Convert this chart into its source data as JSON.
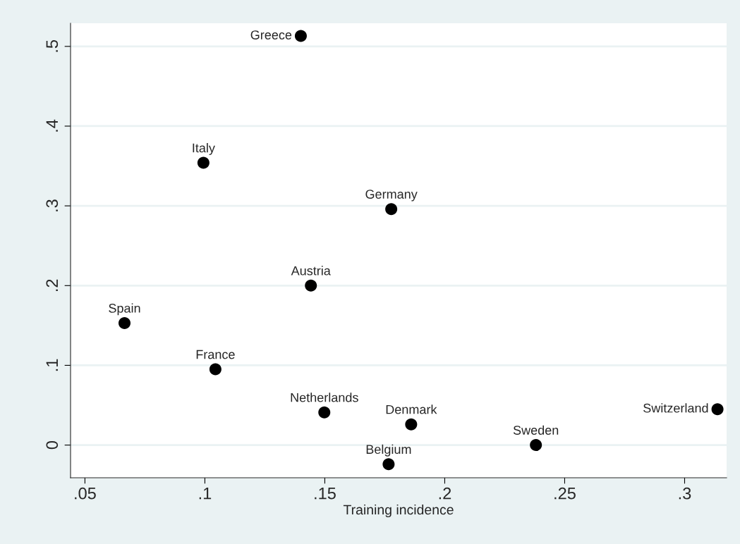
{
  "chart_data": {
    "type": "scatter",
    "xlabel": "Training incidence",
    "series": [
      {
        "color": "#000000",
        "x": [
          0.14,
          0.0994,
          0.1777,
          0.1442,
          0.0665,
          0.1044,
          0.1498,
          0.186,
          0.1766,
          0.238,
          0.3137
        ],
        "values": [
          0.513,
          0.354,
          0.296,
          0.2,
          0.153,
          0.095,
          0.041,
          0.026,
          -0.024,
          0.0,
          0.045
        ]
      }
    ],
    "annotations": [
      {
        "text": "Greece",
        "x": 0.14,
        "y": 0.513
      },
      {
        "text": "Italy",
        "x": 0.0994,
        "y": 0.354
      },
      {
        "text": "Germany",
        "x": 0.1777,
        "y": 0.296
      },
      {
        "text": "Austria",
        "x": 0.1442,
        "y": 0.2
      },
      {
        "text": "Spain",
        "x": 0.0665,
        "y": 0.153
      },
      {
        "text": "France",
        "x": 0.1044,
        "y": 0.095
      },
      {
        "text": "Netherlands",
        "x": 0.1498,
        "y": 0.041
      },
      {
        "text": "Denmark",
        "x": 0.186,
        "y": 0.026
      },
      {
        "text": "Belgium",
        "x": 0.1766,
        "y": -0.024
      },
      {
        "text": "Sweden",
        "x": 0.238,
        "y": 0.0
      },
      {
        "text": "Switzerland",
        "x": 0.3137,
        "y": 0.045
      }
    ],
    "xlim": [
      0.044,
      0.3175
    ],
    "ylim": [
      -0.041,
      0.529
    ],
    "xticks": [
      {
        "value": 0.05,
        "label": ".05"
      },
      {
        "value": 0.1,
        "label": ".1"
      },
      {
        "value": 0.15,
        "label": ".15"
      },
      {
        "value": 0.2,
        "label": ".2"
      },
      {
        "value": 0.25,
        "label": ".25"
      },
      {
        "value": 0.3,
        "label": ".3"
      }
    ],
    "yticks": [
      0,
      {
        "value": 0.1,
        "label": ".1"
      },
      {
        "value": 0.2,
        "label": ".2"
      },
      {
        "value": 0.3,
        "label": ".3"
      },
      {
        "value": 0.4,
        "label": ".4"
      },
      {
        "value": 0.5,
        "label": ".5"
      }
    ],
    "grid": "y",
    "marker": "circle",
    "legend": false
  }
}
